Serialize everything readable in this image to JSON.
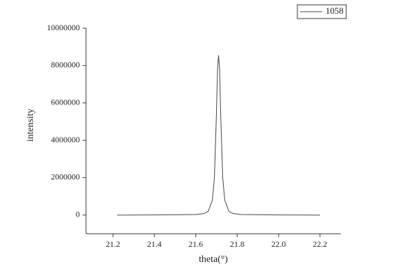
{
  "chart_data": {
    "type": "line",
    "x_label": "theta(°)",
    "y_label": "intensity",
    "x": [
      21.22,
      21.4,
      21.6,
      21.64,
      21.66,
      21.68,
      21.69,
      21.7,
      21.705,
      21.71,
      21.715,
      21.72,
      21.73,
      21.74,
      21.76,
      21.78,
      21.82,
      22.0,
      22.2
    ],
    "series": [
      {
        "name": "1058",
        "color": "#444444",
        "values": [
          0,
          5000,
          30000,
          80000,
          200000,
          800000,
          2000000,
          5500000,
          7800000,
          8550000,
          7800000,
          5500000,
          2000000,
          800000,
          200000,
          80000,
          30000,
          5000,
          0
        ]
      }
    ],
    "xlim": [
      21.07,
      22.3
    ],
    "xticks": [
      21.2,
      21.4,
      21.6,
      21.8,
      {
        "value": 22,
        "label": "22.0"
      },
      22.2
    ],
    "ylim": [
      -1000000,
      10000000
    ],
    "yticks": [
      0,
      2000000,
      4000000,
      6000000,
      8000000,
      10000000
    ],
    "legend": "top-right"
  }
}
